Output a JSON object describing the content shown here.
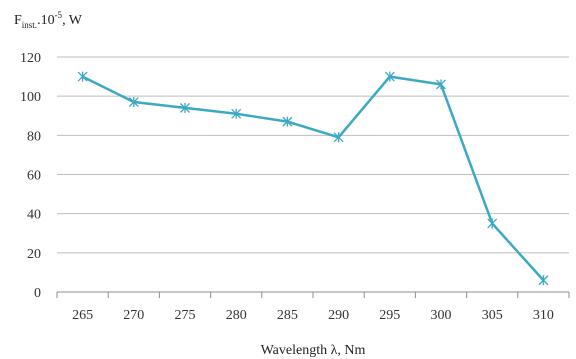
{
  "chart_data": {
    "type": "line",
    "ylabel_parts": {
      "main": "F",
      "subscript": "inst.",
      "mid": ".10",
      "superscript": "-5",
      "tail": ", W"
    },
    "xlabel": "Wavelength λ, Nm",
    "x": [
      265,
      270,
      275,
      280,
      285,
      290,
      295,
      300,
      305,
      310
    ],
    "x_tick_labels": [
      "265",
      "270",
      "275",
      "280",
      "285",
      "290",
      "295",
      "300",
      "305",
      "310"
    ],
    "series": [
      {
        "values": [
          110,
          97,
          94,
          91,
          87,
          79,
          110,
          106,
          35,
          6
        ]
      }
    ],
    "ylim": [
      0,
      120
    ],
    "y_ticks": [
      0,
      20,
      40,
      60,
      80,
      100,
      120
    ],
    "grid": true,
    "marker": "asterisk",
    "line_color": "#3BA9C4",
    "grid_color": "#BEBEBE",
    "axis_color": "#8C8C8C"
  }
}
